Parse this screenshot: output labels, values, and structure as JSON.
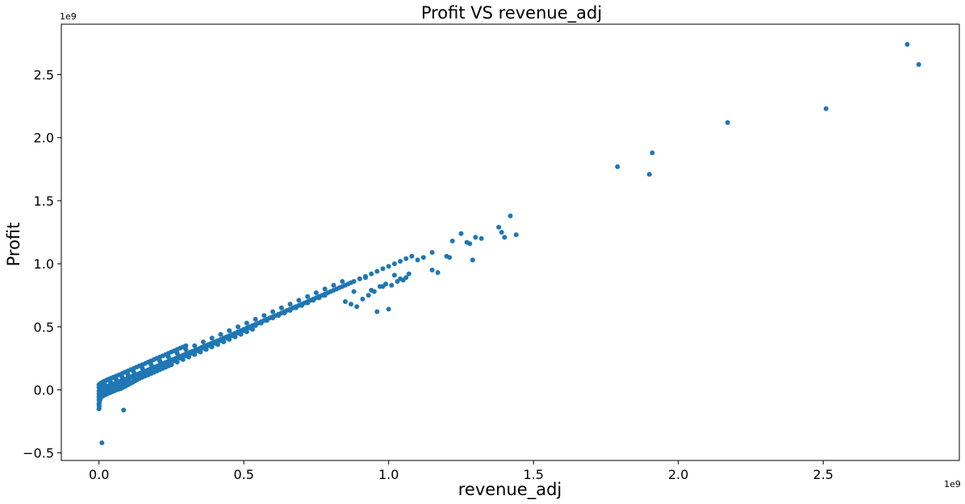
{
  "chart_data": {
    "type": "scatter",
    "title": "Profit VS revenue_adj",
    "xlabel": "revenue_adj",
    "ylabel": "Profit",
    "x_offset_label": "1e9",
    "y_offset_label": "1e9",
    "xlim": [
      -0.13,
      2.97
    ],
    "ylim": [
      -0.56,
      2.9
    ],
    "xticks": [
      0.0,
      0.5,
      1.0,
      1.5,
      2.0,
      2.5
    ],
    "xtick_labels": [
      "0.0",
      "0.5",
      "1.0",
      "1.5",
      "2.0",
      "2.5"
    ],
    "yticks": [
      -0.5,
      0.0,
      0.5,
      1.0,
      1.5,
      2.0,
      2.5
    ],
    "ytick_labels": [
      "−0.5",
      "0.0",
      "0.5",
      "1.0",
      "1.5",
      "2.0",
      "2.5"
    ],
    "grid": false,
    "marker_color": "#1f77b4",
    "series": [
      {
        "x": [
          0.0,
          0.002,
          0.004,
          0.005,
          0.007,
          0.008,
          0.01,
          0.012,
          0.015,
          0.018,
          0.02,
          0.022,
          0.025,
          0.028,
          0.03,
          0.033,
          0.036,
          0.04,
          0.043,
          0.047,
          0.05,
          0.054,
          0.058,
          0.062,
          0.066,
          0.07,
          0.074,
          0.078,
          0.082,
          0.086,
          0.09,
          0.095,
          0.1,
          0.105,
          0.11,
          0.115,
          0.12,
          0.125,
          0.13,
          0.135,
          0.14,
          0.146,
          0.152,
          0.158,
          0.164,
          0.17,
          0.176,
          0.182,
          0.188,
          0.194,
          0.2,
          0.206,
          0.212,
          0.218,
          0.224,
          0.23,
          0.236,
          0.242,
          0.25,
          0.258,
          0.266,
          0.274,
          0.282,
          0.29,
          0.298,
          0.306,
          0.314,
          0.322,
          0.33,
          0.338,
          0.346,
          0.354,
          0.362,
          0.37,
          0.378,
          0.386,
          0.394,
          0.402,
          0.41,
          0.42,
          0.43,
          0.44,
          0.45,
          0.46,
          0.47,
          0.48,
          0.49,
          0.5,
          0.51,
          0.52,
          0.53,
          0.54,
          0.55,
          0.56,
          0.57,
          0.58,
          0.59,
          0.6,
          0.61,
          0.62,
          0.63,
          0.64,
          0.65,
          0.66,
          0.67,
          0.68,
          0.69,
          0.7,
          0.71,
          0.72,
          0.73,
          0.74,
          0.75,
          0.76,
          0.77,
          0.78,
          0.79,
          0.8,
          0.81,
          0.82,
          0.83,
          0.84,
          0.85,
          0.86,
          0.87,
          0.88,
          0.9,
          0.92,
          0.94,
          0.96,
          0.98,
          1.0,
          1.02,
          1.04,
          1.06,
          1.08,
          0.0,
          0.005,
          0.01,
          0.02,
          0.03,
          0.04,
          0.05,
          0.06,
          0.07,
          0.08,
          0.09,
          0.1,
          0.12,
          0.14,
          0.16,
          0.18,
          0.2,
          0.22,
          0.24,
          0.26,
          0.28,
          0.3,
          0.32,
          0.34,
          0.36,
          0.38,
          0.4,
          0.42,
          0.44,
          0.46,
          0.48,
          0.5,
          0.52,
          0.54,
          0.56,
          0.58,
          0.6,
          0.62,
          0.64,
          0.66,
          0.68,
          0.7,
          0.72,
          0.74,
          0.76,
          0.78,
          0.0,
          0.01,
          0.02,
          0.04,
          0.06,
          0.08,
          0.1,
          0.12,
          0.15,
          0.18,
          0.21,
          0.24,
          0.27,
          0.3,
          0.33,
          0.36,
          0.39,
          0.42,
          0.45,
          0.48,
          0.51,
          0.54,
          0.57,
          0.6,
          0.63,
          0.66,
          0.69,
          0.72,
          0.75,
          0.78,
          0.81,
          0.84,
          0.0,
          0.005,
          0.015,
          0.03,
          0.045,
          0.06,
          0.075,
          0.09,
          0.11,
          0.13,
          0.15,
          0.17,
          0.19,
          0.21,
          0.23,
          0.25,
          0.27,
          0.29,
          0.31,
          0.33,
          0.35,
          0.37,
          0.39,
          0.41,
          0.43,
          0.45,
          0.47,
          0.49,
          0.51,
          0.53,
          0.0,
          0.0,
          0.003,
          0.006,
          0.009,
          0.012,
          0.016,
          0.02,
          0.025,
          0.03,
          0.035,
          0.04,
          0.045,
          0.05,
          0.055,
          0.06,
          0.068,
          0.076,
          0.084,
          0.092,
          0.1,
          0.108,
          0.116,
          0.124,
          0.132,
          0.14,
          0.15,
          0.16,
          0.17,
          0.18,
          0.19,
          0.2,
          0.21,
          0.22,
          0.23,
          0.24,
          0.25,
          0.0,
          0.0,
          0.001,
          0.002,
          0.003,
          0.004,
          0.006,
          0.008,
          0.01,
          0.012,
          0.0,
          0.002,
          0.005,
          0.008,
          0.012,
          0.016,
          0.02,
          0.025,
          0.03,
          0.035,
          0.04,
          0.045,
          0.05,
          0.06,
          0.07,
          0.08,
          0.09,
          0.1,
          0.11,
          0.12,
          0.13,
          0.14,
          0.15,
          0.16,
          0.17,
          0.18,
          0.19,
          0.2,
          0.21,
          0.22,
          0.23,
          0.24,
          0.25,
          0.26,
          0.27,
          0.28,
          0.29,
          0.3,
          0.85,
          0.87,
          0.89,
          0.91,
          0.93,
          0.95,
          0.97,
          0.99,
          1.01,
          1.03,
          1.05,
          1.07,
          0.88,
          0.9,
          0.92,
          0.94,
          0.96,
          0.98,
          1.0,
          1.02,
          1.04,
          1.06,
          1.1,
          1.12,
          1.15,
          1.2,
          1.22,
          1.25,
          1.27,
          1.3,
          1.32,
          1.38,
          1.39,
          1.4,
          1.42,
          1.44,
          1.15,
          1.17,
          1.21,
          1.28,
          1.29,
          0.01,
          0.085,
          0.0,
          0.001,
          0.0,
          1.79,
          1.9,
          1.91,
          2.17,
          2.51,
          2.79,
          2.83
        ],
        "y": [
          -0.01,
          0.0,
          0.001,
          0.003,
          0.005,
          0.006,
          0.008,
          0.01,
          0.012,
          0.015,
          0.017,
          0.02,
          0.022,
          0.025,
          0.028,
          0.03,
          0.033,
          0.036,
          0.04,
          0.043,
          0.046,
          0.05,
          0.053,
          0.057,
          0.06,
          0.064,
          0.068,
          0.071,
          0.075,
          0.078,
          0.082,
          0.087,
          0.092,
          0.096,
          0.101,
          0.106,
          0.11,
          0.115,
          0.12,
          0.125,
          0.13,
          0.135,
          0.141,
          0.147,
          0.152,
          0.158,
          0.164,
          0.17,
          0.176,
          0.181,
          0.187,
          0.193,
          0.199,
          0.205,
          0.211,
          0.217,
          0.222,
          0.228,
          0.236,
          0.243,
          0.251,
          0.259,
          0.266,
          0.274,
          0.282,
          0.289,
          0.297,
          0.305,
          0.312,
          0.32,
          0.328,
          0.336,
          0.343,
          0.351,
          0.359,
          0.367,
          0.374,
          0.382,
          0.39,
          0.4,
          0.41,
          0.42,
          0.43,
          0.44,
          0.45,
          0.46,
          0.47,
          0.48,
          0.49,
          0.5,
          0.51,
          0.52,
          0.53,
          0.54,
          0.55,
          0.56,
          0.57,
          0.58,
          0.59,
          0.6,
          0.61,
          0.62,
          0.63,
          0.64,
          0.65,
          0.66,
          0.67,
          0.68,
          0.69,
          0.7,
          0.71,
          0.72,
          0.73,
          0.74,
          0.75,
          0.76,
          0.77,
          0.78,
          0.79,
          0.8,
          0.81,
          0.82,
          0.83,
          0.84,
          0.85,
          0.86,
          0.88,
          0.9,
          0.92,
          0.94,
          0.96,
          0.98,
          1.0,
          1.02,
          1.04,
          1.06,
          -0.03,
          -0.025,
          -0.02,
          -0.01,
          0.0,
          0.01,
          0.02,
          0.03,
          0.04,
          0.05,
          0.06,
          0.07,
          0.09,
          0.11,
          0.13,
          0.15,
          0.17,
          0.19,
          0.21,
          0.23,
          0.25,
          0.27,
          0.29,
          0.31,
          0.33,
          0.35,
          0.37,
          0.39,
          0.41,
          0.43,
          0.45,
          0.47,
          0.49,
          0.51,
          0.53,
          0.55,
          0.57,
          0.59,
          0.61,
          0.63,
          0.65,
          0.67,
          0.69,
          0.71,
          0.73,
          0.75,
          0.02,
          0.03,
          0.04,
          0.06,
          0.08,
          0.1,
          0.12,
          0.14,
          0.17,
          0.2,
          0.23,
          0.26,
          0.29,
          0.32,
          0.35,
          0.38,
          0.41,
          0.44,
          0.47,
          0.5,
          0.53,
          0.56,
          0.59,
          0.62,
          0.65,
          0.68,
          0.71,
          0.74,
          0.77,
          0.8,
          0.83,
          0.86,
          -0.05,
          -0.045,
          -0.035,
          -0.02,
          -0.005,
          0.01,
          0.025,
          0.04,
          0.06,
          0.08,
          0.1,
          0.12,
          0.14,
          0.16,
          0.18,
          0.2,
          0.22,
          0.24,
          0.26,
          0.28,
          0.3,
          0.32,
          0.34,
          0.36,
          0.38,
          0.4,
          0.42,
          0.44,
          0.46,
          0.48,
          -0.08,
          -0.06,
          -0.07,
          -0.06,
          -0.055,
          -0.05,
          -0.045,
          -0.04,
          -0.035,
          -0.03,
          -0.025,
          -0.02,
          -0.015,
          -0.01,
          -0.005,
          0.0,
          0.005,
          0.01,
          0.02,
          0.03,
          0.04,
          0.05,
          0.06,
          0.07,
          0.08,
          0.09,
          0.1,
          0.11,
          0.12,
          0.13,
          0.14,
          0.15,
          0.16,
          0.17,
          0.18,
          0.19,
          0.2,
          -0.12,
          -0.15,
          -0.1,
          -0.09,
          -0.08,
          -0.07,
          -0.06,
          -0.05,
          -0.04,
          -0.03,
          0.04,
          0.045,
          0.05,
          0.055,
          0.06,
          0.065,
          0.07,
          0.075,
          0.08,
          0.085,
          0.09,
          0.095,
          0.1,
          0.11,
          0.12,
          0.13,
          0.14,
          0.15,
          0.16,
          0.17,
          0.18,
          0.19,
          0.2,
          0.21,
          0.22,
          0.23,
          0.24,
          0.25,
          0.26,
          0.27,
          0.28,
          0.29,
          0.3,
          0.31,
          0.32,
          0.33,
          0.34,
          0.35,
          0.7,
          0.68,
          0.66,
          0.72,
          0.75,
          0.78,
          0.82,
          0.84,
          0.83,
          0.86,
          0.87,
          0.92,
          0.78,
          0.88,
          0.89,
          0.79,
          0.62,
          0.82,
          0.64,
          0.91,
          0.88,
          0.89,
          1.03,
          1.05,
          1.09,
          1.06,
          1.18,
          1.24,
          1.17,
          1.21,
          1.2,
          1.29,
          1.25,
          1.21,
          1.38,
          1.23,
          0.95,
          0.93,
          1.05,
          1.16,
          1.03,
          -0.42,
          -0.16,
          -0.15,
          -0.13,
          -0.11,
          1.77,
          1.71,
          1.88,
          2.12,
          2.23,
          2.74,
          2.58
        ]
      }
    ]
  }
}
